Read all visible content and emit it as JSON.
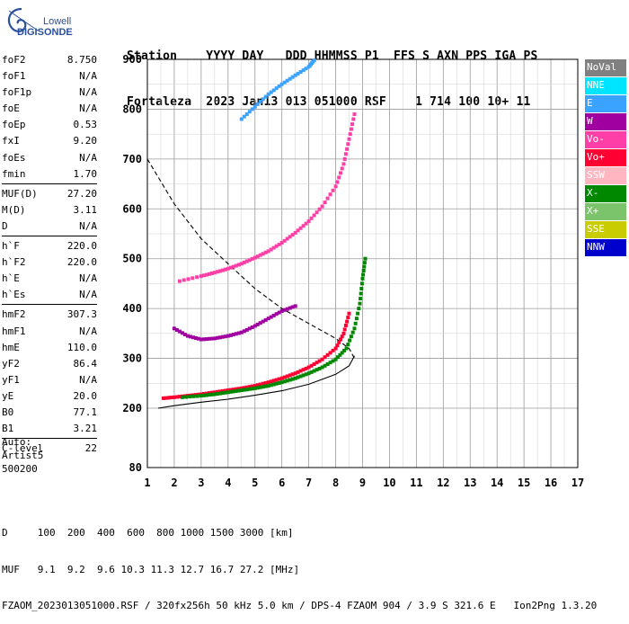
{
  "logo": {
    "line1": "Lowell",
    "line2": "DIGISONDE",
    "icon": "spiral-logo-icon"
  },
  "header": {
    "labels": "Station    YYYY DAY   DDD HHMMSS P1  FFS S AXN PPS IGA PS",
    "values": "Fortaleza  2023 Jan13 013 051000 RSF    1 714 100 10+ 11"
  },
  "params": [
    [
      {
        "name": "foF2",
        "value": "8.750"
      },
      {
        "name": "foF1",
        "value": "N/A"
      },
      {
        "name": "foF1p",
        "value": "N/A"
      },
      {
        "name": "foE",
        "value": "N/A"
      },
      {
        "name": "foEp",
        "value": "0.53"
      },
      {
        "name": "fxI",
        "value": "9.20"
      },
      {
        "name": "foEs",
        "value": "N/A"
      },
      {
        "name": "fmin",
        "value": "1.70"
      }
    ],
    [
      {
        "name": "MUF(D)",
        "value": "27.20"
      },
      {
        "name": "M(D)",
        "value": "3.11"
      },
      {
        "name": "D",
        "value": "N/A"
      }
    ],
    [
      {
        "name": "h`F",
        "value": "220.0"
      },
      {
        "name": "h`F2",
        "value": "220.0"
      },
      {
        "name": "h`E",
        "value": "N/A"
      },
      {
        "name": "h`Es",
        "value": "N/A"
      }
    ],
    [
      {
        "name": "hmF2",
        "value": "307.3"
      },
      {
        "name": "hmF1",
        "value": "N/A"
      },
      {
        "name": "hmE",
        "value": "110.0"
      },
      {
        "name": "yF2",
        "value": "86.4"
      },
      {
        "name": "yF1",
        "value": "N/A"
      },
      {
        "name": "yE",
        "value": "20.0"
      },
      {
        "name": "B0",
        "value": "77.1"
      },
      {
        "name": "B1",
        "value": "3.21"
      }
    ],
    [
      {
        "name": "C-level",
        "value": "22"
      }
    ]
  ],
  "auto": {
    "line1": "Auto:",
    "line2": "Artist5",
    "line3": "500200"
  },
  "legend": [
    {
      "label": "NoVal",
      "color": "#808080"
    },
    {
      "label": "NNE",
      "color": "#00e5ff"
    },
    {
      "label": "E",
      "color": "#3aa3ff"
    },
    {
      "label": "W",
      "color": "#a000a0"
    },
    {
      "label": "Vo-",
      "color": "#ff3fa8"
    },
    {
      "label": "Vo+",
      "color": "#ff0033"
    },
    {
      "label": "SSW",
      "color": "#ffb6c1"
    },
    {
      "label": "X-",
      "color": "#008800"
    },
    {
      "label": "X+",
      "color": "#7cc46b"
    },
    {
      "label": "SSE",
      "color": "#c8cc00"
    },
    {
      "label": "NNW",
      "color": "#0000cc"
    }
  ],
  "chart_data": {
    "type": "scatter",
    "title": "",
    "xlabel": "",
    "ylabel": "",
    "xlim": [
      1,
      17
    ],
    "ylim": [
      80,
      900
    ],
    "xticks": [
      1,
      2,
      3,
      4,
      5,
      6,
      7,
      8,
      9,
      10,
      11,
      12,
      13,
      14,
      15,
      16,
      17
    ],
    "yticks": [
      80,
      200,
      300,
      400,
      500,
      600,
      700,
      800,
      900
    ],
    "grid": true,
    "legend_position": "right",
    "series": [
      {
        "name": "Vo+",
        "color": "#ff0033",
        "x": [
          1.6,
          2.0,
          2.5,
          3.0,
          3.5,
          4.0,
          4.5,
          5.0,
          5.5,
          6.0,
          6.5,
          7.0,
          7.5,
          8.0,
          8.3,
          8.5
        ],
        "y": [
          220,
          222,
          225,
          228,
          232,
          236,
          240,
          245,
          252,
          260,
          270,
          282,
          298,
          320,
          350,
          390
        ]
      },
      {
        "name": "X-",
        "color": "#008800",
        "x": [
          2.3,
          3.0,
          3.5,
          4.0,
          4.5,
          5.0,
          5.5,
          6.0,
          6.5,
          7.0,
          7.5,
          8.0,
          8.4,
          8.7,
          8.9,
          9.0,
          9.1
        ],
        "y": [
          222,
          225,
          228,
          232,
          236,
          240,
          245,
          252,
          260,
          270,
          282,
          298,
          320,
          360,
          410,
          460,
          500
        ]
      },
      {
        "name": "Vo-",
        "color": "#ff3fa8",
        "x": [
          2.2,
          3.0,
          3.5,
          4.0,
          4.5,
          5.0,
          5.5,
          6.0,
          6.5,
          7.0,
          7.5,
          8.0,
          8.3,
          8.5,
          8.7
        ],
        "y": [
          455,
          465,
          472,
          480,
          490,
          502,
          515,
          532,
          552,
          575,
          605,
          645,
          690,
          740,
          790
        ]
      },
      {
        "name": "E",
        "color": "#3aa3ff",
        "x": [
          4.5,
          5.0,
          5.5,
          6.0,
          6.5,
          7.0,
          7.2
        ],
        "y": [
          780,
          805,
          830,
          850,
          868,
          885,
          898
        ]
      },
      {
        "name": "W",
        "color": "#a000a0",
        "x": [
          2.0,
          2.5,
          3.0,
          3.5,
          4.0,
          4.5,
          5.0,
          5.5,
          6.0,
          6.5
        ],
        "y": [
          360,
          345,
          338,
          340,
          345,
          352,
          365,
          380,
          395,
          405
        ]
      }
    ],
    "curves": [
      {
        "name": "scaled-profile",
        "style": "dashed",
        "x": [
          1.0,
          2.0,
          3.0,
          4.0,
          5.0,
          6.0,
          7.0,
          8.0,
          8.5,
          8.7
        ],
        "y": [
          700,
          610,
          540,
          490,
          440,
          400,
          370,
          340,
          320,
          300
        ]
      },
      {
        "name": "MUF-curve",
        "style": "solid",
        "x": [
          1.4,
          2.0,
          3.0,
          4.0,
          5.0,
          6.0,
          7.0,
          8.0,
          8.5,
          8.7
        ],
        "y": [
          200,
          205,
          212,
          218,
          226,
          235,
          248,
          268,
          285,
          305
        ]
      }
    ]
  },
  "footer": {
    "line1": "D     100  200  400  600  800 1000 1500 3000 [km]",
    "line2": "MUF   9.1  9.2  9.6 10.3 11.3 12.7 16.7 27.2 [MHz]",
    "line3": "FZAOM_2023013051000.RSF / 320fx256h 50 kHz 5.0 km / DPS-4 FZAOM 904 / 3.9 S 321.6 E   Ion2Png 1.3.20"
  }
}
